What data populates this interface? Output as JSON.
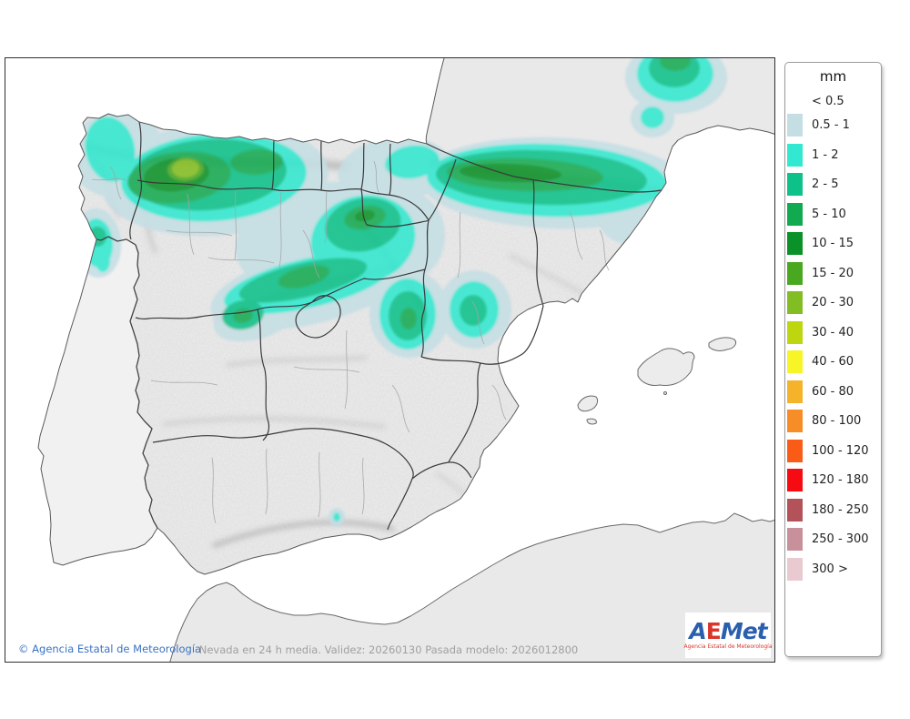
{
  "legend": {
    "title": "mm",
    "first_label": "< 0.5",
    "items": [
      {
        "label": "0.5 - 1",
        "color": "#c4dee4"
      },
      {
        "label": "1 - 2",
        "color": "#33e8d0"
      },
      {
        "label": "2 - 5",
        "color": "#0ec189"
      },
      {
        "label": "5 - 10",
        "color": "#12aa51"
      },
      {
        "label": "10 - 15",
        "color": "#0a9128"
      },
      {
        "label": "15 - 20",
        "color": "#4aa820"
      },
      {
        "label": "20 - 30",
        "color": "#83bd24"
      },
      {
        "label": "30 - 40",
        "color": "#bdd60f"
      },
      {
        "label": "40 - 60",
        "color": "#f7f428"
      },
      {
        "label": "60 - 80",
        "color": "#f4b32a"
      },
      {
        "label": "80 - 100",
        "color": "#f78d26"
      },
      {
        "label": "100 - 120",
        "color": "#fa5c17"
      },
      {
        "label": "120 - 180",
        "color": "#f60b12"
      },
      {
        "label": "180 - 250",
        "color": "#b4525a"
      },
      {
        "label": "250 - 300",
        "color": "#c8909a"
      },
      {
        "label": "300 >",
        "color": "#e9cad0"
      }
    ]
  },
  "footer": {
    "caption": "Nevada en 24 h media. Validez: 20260130 Pasada modelo: 2026012800",
    "copyright": "© Agencia Estatal de Meteorología"
  },
  "logo": {
    "a": "A",
    "e": "E",
    "met": "Met",
    "subtitle": "Agencia Estatal de Meteorología"
  },
  "colors": {
    "sea": "#ffffff",
    "spain_land": "#ededed",
    "france_land": "#e9e9e9",
    "portugal_land": "#f1f1f1",
    "africa_land": "#e9e9e9",
    "coastline": "#5a5a5a",
    "region_border": "#3a3a3a",
    "province_border": "#a3a3a3",
    "frame_border": "#2f2f2f"
  }
}
